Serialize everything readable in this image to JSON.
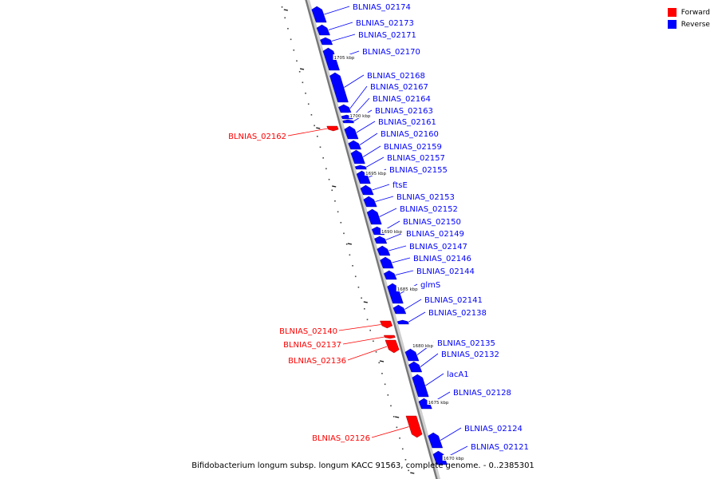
{
  "legend": {
    "forward_label": "Forward",
    "reverse_label": "Reverse",
    "forward_color": "#ff0000",
    "reverse_color": "#0000ff"
  },
  "caption": "Bifidobacterium longum subsp. longum KACC 91563, complete genome. - 0..2385301",
  "backbone_color": "#777777",
  "genes": [
    {
      "name": "BLNIAS_02174",
      "strand": "reverse"
    },
    {
      "name": "BLNIAS_02173",
      "strand": "reverse"
    },
    {
      "name": "BLNIAS_02171",
      "strand": "reverse"
    },
    {
      "name": "BLNIAS_02170",
      "strand": "reverse"
    },
    {
      "name": "BLNIAS_02168",
      "strand": "reverse"
    },
    {
      "name": "BLNIAS_02167",
      "strand": "reverse"
    },
    {
      "name": "BLNIAS_02164",
      "strand": "reverse"
    },
    {
      "name": "BLNIAS_02163",
      "strand": "reverse"
    },
    {
      "name": "BLNIAS_02161",
      "strand": "reverse"
    },
    {
      "name": "BLNIAS_02162",
      "strand": "forward"
    },
    {
      "name": "BLNIAS_02160",
      "strand": "reverse"
    },
    {
      "name": "BLNIAS_02159",
      "strand": "reverse"
    },
    {
      "name": "BLNIAS_02157",
      "strand": "reverse"
    },
    {
      "name": "BLNIAS_02155",
      "strand": "reverse"
    },
    {
      "name": "ftsE",
      "strand": "reverse"
    },
    {
      "name": "BLNIAS_02153",
      "strand": "reverse"
    },
    {
      "name": "BLNIAS_02152",
      "strand": "reverse"
    },
    {
      "name": "BLNIAS_02150",
      "strand": "reverse"
    },
    {
      "name": "BLNIAS_02149",
      "strand": "reverse"
    },
    {
      "name": "BLNIAS_02147",
      "strand": "reverse"
    },
    {
      "name": "BLNIAS_02146",
      "strand": "reverse"
    },
    {
      "name": "BLNIAS_02144",
      "strand": "reverse"
    },
    {
      "name": "glmS",
      "strand": "reverse"
    },
    {
      "name": "BLNIAS_02141",
      "strand": "reverse"
    },
    {
      "name": "BLNIAS_02138",
      "strand": "reverse"
    },
    {
      "name": "BLNIAS_02140",
      "strand": "forward"
    },
    {
      "name": "BLNIAS_02137",
      "strand": "forward"
    },
    {
      "name": "BLNIAS_02136",
      "strand": "forward"
    },
    {
      "name": "BLNIAS_02135",
      "strand": "reverse"
    },
    {
      "name": "BLNIAS_02132",
      "strand": "reverse"
    },
    {
      "name": "lacA1",
      "strand": "reverse"
    },
    {
      "name": "BLNIAS_02128",
      "strand": "reverse"
    },
    {
      "name": "BLNIAS_02126",
      "strand": "forward"
    },
    {
      "name": "BLNIAS_02124",
      "strand": "reverse"
    },
    {
      "name": "BLNIAS_02121",
      "strand": "reverse"
    }
  ],
  "position_labels": [
    "1705 kbp",
    "1700 kbp",
    "1695 kbp",
    "1690 kbp",
    "1685 kbp",
    "1680 kbp",
    "1675 kbp",
    "1670 kbp"
  ]
}
